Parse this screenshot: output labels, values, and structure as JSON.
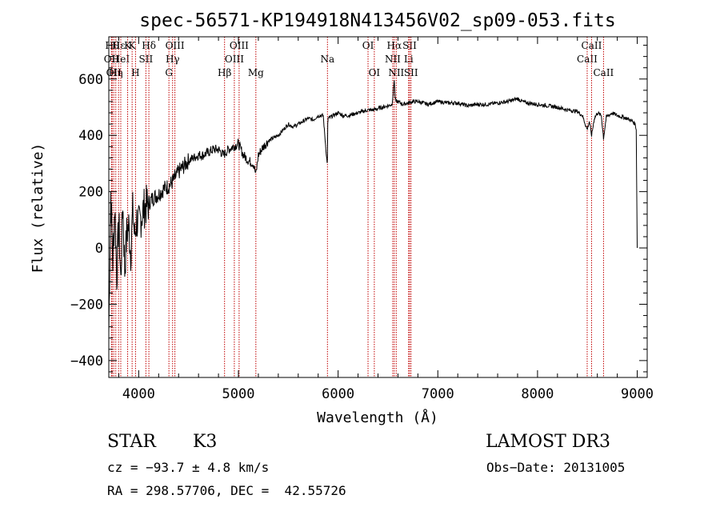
{
  "chart_data": {
    "type": "line",
    "title": "spec-56571-KP194918N413456V02_sp09-053.fits",
    "xlabel": "Wavelength (Å)",
    "ylabel": "Flux (relative)",
    "xlim": [
      3700,
      9100
    ],
    "ylim": [
      -460,
      750
    ],
    "xticks": [
      4000,
      5000,
      6000,
      7000,
      8000,
      9000
    ],
    "yticks": [
      -400,
      -200,
      0,
      200,
      400,
      600
    ],
    "xtick_labels": [
      "4000",
      "5000",
      "6000",
      "7000",
      "8000",
      "9000"
    ],
    "ytick_labels": [
      "−400",
      "−200",
      "0",
      "200",
      "400",
      "600"
    ],
    "series": [
      {
        "name": "flux",
        "x": [
          3700,
          3720,
          3740,
          3760,
          3780,
          3800,
          3820,
          3840,
          3860,
          3880,
          3900,
          3920,
          3940,
          3960,
          3980,
          4000,
          4050,
          4100,
          4150,
          4200,
          4250,
          4300,
          4350,
          4400,
          4450,
          4500,
          4550,
          4600,
          4650,
          4700,
          4750,
          4800,
          4850,
          4900,
          4950,
          5000,
          5050,
          5100,
          5150,
          5175,
          5200,
          5250,
          5300,
          5350,
          5400,
          5450,
          5500,
          5550,
          5600,
          5650,
          5700,
          5750,
          5800,
          5850,
          5890,
          5893,
          5896,
          5900,
          5950,
          6000,
          6050,
          6100,
          6150,
          6200,
          6250,
          6300,
          6350,
          6400,
          6450,
          6500,
          6540,
          6555,
          6563,
          6570,
          6580,
          6600,
          6650,
          6700,
          6750,
          6800,
          6850,
          6900,
          6950,
          7000,
          7100,
          7200,
          7300,
          7400,
          7500,
          7600,
          7700,
          7750,
          7800,
          7850,
          7900,
          8000,
          8100,
          8200,
          8300,
          8400,
          8450,
          8498,
          8520,
          8542,
          8570,
          8600,
          8640,
          8662,
          8690,
          8750,
          8800,
          8850,
          8900,
          8950,
          8980,
          8990,
          9000
        ],
        "y": [
          -300,
          200,
          -50,
          150,
          -100,
          100,
          -120,
          170,
          -80,
          50,
          80,
          -20,
          130,
          40,
          100,
          80,
          140,
          160,
          180,
          190,
          210,
          220,
          240,
          270,
          290,
          310,
          320,
          330,
          330,
          340,
          350,
          350,
          330,
          350,
          360,
          370,
          330,
          310,
          300,
          260,
          330,
          360,
          380,
          390,
          400,
          420,
          440,
          430,
          440,
          450,
          460,
          455,
          470,
          470,
          300,
          320,
          440,
          460,
          470,
          480,
          470,
          470,
          475,
          480,
          485,
          490,
          490,
          495,
          500,
          505,
          510,
          560,
          600,
          540,
          520,
          520,
          510,
          515,
          520,
          520,
          515,
          510,
          515,
          520,
          515,
          515,
          505,
          510,
          510,
          515,
          520,
          525,
          530,
          520,
          515,
          510,
          505,
          500,
          490,
          485,
          470,
          420,
          450,
          400,
          460,
          480,
          470,
          390,
          465,
          480,
          470,
          465,
          460,
          450,
          440,
          420,
          0
        ],
        "color": "#000000"
      }
    ],
    "line_markers": [
      {
        "wave": 3734,
        "label": "Hθ",
        "row": 0
      },
      {
        "wave": 3727,
        "label": "OII",
        "row": 1
      },
      {
        "wave": 3750,
        "label": "OII",
        "row": 2
      },
      {
        "wave": 3770,
        "label": "Hη",
        "row": 2
      },
      {
        "wave": 3798,
        "label": "Hε",
        "row": 0
      },
      {
        "wave": 3820,
        "label": "HeI",
        "row": 1
      },
      {
        "wave": 3889,
        "label": "K",
        "row": 0
      },
      {
        "wave": 3934,
        "label": "K",
        "row": 0
      },
      {
        "wave": 3968,
        "label": "H",
        "row": 2
      },
      {
        "wave": 4072,
        "label": "SII",
        "row": 1
      },
      {
        "wave": 4102,
        "label": "Hδ",
        "row": 0
      },
      {
        "wave": 4303,
        "label": "G",
        "row": 2
      },
      {
        "wave": 4340,
        "label": "Hγ",
        "row": 1
      },
      {
        "wave": 4363,
        "label": "OIII",
        "row": 0
      },
      {
        "wave": 4861,
        "label": "Hβ",
        "row": 2
      },
      {
        "wave": 4959,
        "label": "OIII",
        "row": 1
      },
      {
        "wave": 5007,
        "label": "OIII",
        "row": 0
      },
      {
        "wave": 5175,
        "label": "Mg",
        "row": 2
      },
      {
        "wave": 5893,
        "label": "Na",
        "row": 1
      },
      {
        "wave": 6300,
        "label": "OI",
        "row": 0
      },
      {
        "wave": 6363,
        "label": "OI",
        "row": 2
      },
      {
        "wave": 6548,
        "label": "NII",
        "row": 1
      },
      {
        "wave": 6563,
        "label": "Hα",
        "row": 0
      },
      {
        "wave": 6583,
        "label": "NII",
        "row": 2
      },
      {
        "wave": 6707,
        "label": "Li",
        "row": 1
      },
      {
        "wave": 6717,
        "label": "SII",
        "row": 0
      },
      {
        "wave": 6731,
        "label": "SII",
        "row": 2
      },
      {
        "wave": 8498,
        "label": "CaII",
        "row": 1
      },
      {
        "wave": 8542,
        "label": "CaII",
        "row": 0
      },
      {
        "wave": 8662,
        "label": "CaII",
        "row": 2
      }
    ]
  },
  "info": {
    "object_class": "STAR",
    "subclass": "K3",
    "survey": "LAMOST DR3",
    "redshift_line": "cz = −93.7 ± 4.8 km/s",
    "obs_date": "Obs−Date: 20131005",
    "coords": "RA = 298.57706, DEC =  42.55726"
  },
  "colors": {
    "marker": "#c00000",
    "axis": "#000000"
  }
}
